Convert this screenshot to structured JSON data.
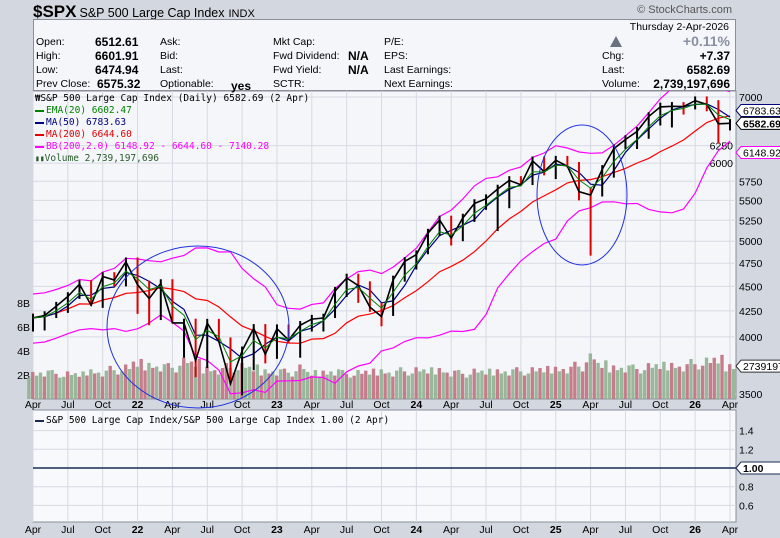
{
  "header": {
    "symbol": "$SPX",
    "name": "S&P 500 Large Cap Index",
    "exchange": "INDX",
    "brand": "© StockCharts.com",
    "date": "Thursday  2-Apr-2026",
    "pct_change": "+0.11%",
    "direction": "up",
    "fields": {
      "open_label": "Open:",
      "open": "6512.61",
      "high_label": "High:",
      "high": "6601.91",
      "low_label": "Low:",
      "low": "6474.94",
      "prev_label": "Prev Close:",
      "prev": "6575.32",
      "ask_label": "Ask:",
      "bid_label": "Bid:",
      "last2_label": "Last:",
      "optionable_label": "Optionable:",
      "optionable": "yes",
      "mktcap_label": "Mkt Cap:",
      "fwddiv_label": "Fwd Dividend:",
      "fwddiv": "N/A",
      "fwdyield_label": "Fwd Yield:",
      "fwdyield": "N/A",
      "sctr_label": "SCTR:",
      "pe_label": "P/E:",
      "eps_label": "EPS:",
      "lastearn_label": "Last Earnings:",
      "nextearn_label": "Next Earnings:",
      "chg_label": "Chg:",
      "chg": "+7.37",
      "last_label": "Last:",
      "last": "6582.69",
      "volume_label": "Volume:",
      "volume": "2,739,197,696"
    }
  },
  "legend": {
    "main": "S&P 500 Large Cap Index (Daily) 6582.69 (2 Apr)",
    "ema": "EMA(20) 6602.47",
    "ma50": "MA(50) 6783.63",
    "ma200": "MA(200) 6644.60",
    "bb": "BB(200,2.0) 6148.92 - 6644.60 - 7140.28",
    "volume": "Volume 2,739,197,696",
    "lower": "S&P 500 Large Cap Index/S&P 500 Large Cap Index 1.00 (2 Apr)"
  },
  "colors": {
    "price": "#000000",
    "ema": "#008000",
    "ma50": "#000080",
    "ma200": "#ff0000",
    "bb": "#ff00ff",
    "vol_up": "#8fb08f",
    "vol_down": "#c07080",
    "annotation": "#2030e0",
    "ratio": "#1a2a55"
  },
  "chart_data": [
    {
      "type": "line",
      "title": "S&P 500 Large Cap Index (Daily)",
      "yscale": "log",
      "ylim": [
        3400,
        7150
      ],
      "yticks": [
        7000,
        6250,
        6000,
        5750,
        5500,
        5250,
        5000,
        4750,
        4500,
        4250,
        4000,
        3500
      ],
      "price_tags": [
        {
          "text": "6783.63",
          "value": 6783.63,
          "series": "ma50"
        },
        {
          "text": "6582.69",
          "value": 6582.69,
          "series": "price"
        },
        {
          "text": "6148.92",
          "value": 6148.92,
          "series": "bb"
        }
      ],
      "volume_tag": "2739197",
      "xtick_labels": [
        "Apr",
        "Jul",
        "Oct",
        "22",
        "Apr",
        "Jul",
        "Oct",
        "23",
        "Apr",
        "Jul",
        "Oct",
        "24",
        "Apr",
        "Jul",
        "Oct",
        "25",
        "Apr",
        "Jul",
        "Oct",
        "26",
        "Apr"
      ],
      "months": [
        "2021-04",
        "2021-05",
        "2021-06",
        "2021-07",
        "2021-08",
        "2021-09",
        "2021-10",
        "2021-11",
        "2021-12",
        "2022-01",
        "2022-02",
        "2022-03",
        "2022-04",
        "2022-05",
        "2022-06",
        "2022-07",
        "2022-08",
        "2022-09",
        "2022-10",
        "2022-11",
        "2022-12",
        "2023-01",
        "2023-02",
        "2023-03",
        "2023-04",
        "2023-05",
        "2023-06",
        "2023-07",
        "2023-08",
        "2023-09",
        "2023-10",
        "2023-11",
        "2023-12",
        "2024-01",
        "2024-02",
        "2024-03",
        "2024-04",
        "2024-05",
        "2024-06",
        "2024-07",
        "2024-08",
        "2024-09",
        "2024-10",
        "2024-11",
        "2024-12",
        "2025-01",
        "2025-02",
        "2025-03",
        "2025-04",
        "2025-05",
        "2025-06",
        "2025-07",
        "2025-08",
        "2025-09",
        "2025-10",
        "2025-11",
        "2025-12",
        "2026-01",
        "2026-02",
        "2026-03",
        "2026-04"
      ],
      "close": [
        4181,
        4204,
        4297,
        4395,
        4523,
        4307,
        4605,
        4567,
        4766,
        4516,
        4374,
        4530,
        4132,
        4132,
        3785,
        4130,
        3955,
        3586,
        3872,
        4080,
        3840,
        4077,
        3970,
        4109,
        4169,
        4180,
        4450,
        4589,
        4508,
        4288,
        4194,
        4568,
        4770,
        4846,
        5096,
        5254,
        5036,
        5278,
        5460,
        5522,
        5648,
        5762,
        5705,
        6032,
        5882,
        6041,
        5955,
        5612,
        5569,
        5912,
        6205,
        6339,
        6460,
        6688,
        6840,
        6849,
        6845,
        6940,
        6880,
        6575,
        6583
      ],
      "low": [
        4050,
        4060,
        4180,
        4230,
        4370,
        4300,
        4280,
        4500,
        4500,
        4220,
        4110,
        4160,
        4130,
        3810,
        3640,
        3720,
        3950,
        3580,
        3490,
        3700,
        3760,
        3800,
        3940,
        3810,
        4050,
        4050,
        4180,
        4390,
        4330,
        4240,
        4100,
        4200,
        4550,
        4680,
        4850,
        5060,
        4950,
        5000,
        5230,
        5380,
        5120,
        5400,
        5690,
        5700,
        5830,
        5780,
        5940,
        5500,
        4835,
        5550,
        5800,
        6200,
        6200,
        6350,
        6550,
        6520,
        6720,
        6800,
        6770,
        6280,
        6475
      ],
      "volume_billions": [
        2.1,
        2.2,
        2.1,
        2.0,
        2.0,
        2.3,
        2.2,
        2.4,
        2.5,
        2.9,
        2.8,
        2.7,
        2.6,
        3.0,
        2.9,
        2.5,
        2.4,
        2.6,
        2.6,
        2.5,
        2.3,
        2.3,
        2.2,
        2.5,
        2.1,
        2.2,
        2.3,
        2.1,
        2.1,
        2.2,
        2.3,
        2.2,
        2.3,
        2.3,
        2.3,
        2.4,
        2.2,
        2.1,
        2.2,
        2.2,
        2.3,
        2.3,
        2.3,
        2.3,
        2.4,
        2.5,
        2.5,
        2.7,
        3.3,
        2.8,
        2.6,
        2.6,
        2.5,
        2.6,
        2.7,
        2.8,
        2.7,
        2.9,
        3.0,
        3.2,
        2.7
      ],
      "volume_ticks": [
        "2B",
        "4B",
        "6B",
        "8B"
      ]
    },
    {
      "type": "line",
      "title": "S&P 500 Large Cap Index/S&P 500 Large Cap Index",
      "ylim": [
        0.45,
        1.55
      ],
      "yticks": [
        1.4,
        1.2,
        0.8,
        0.6
      ],
      "value": 1.0,
      "value_tag": "1.00"
    }
  ]
}
